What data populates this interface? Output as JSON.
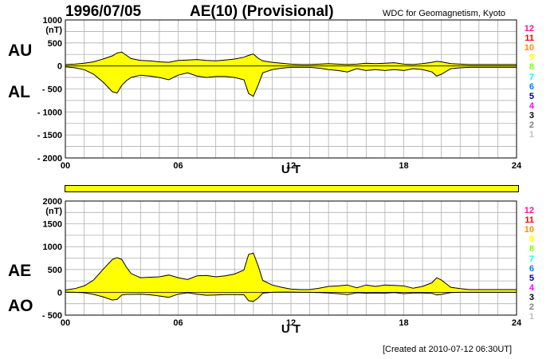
{
  "header": {
    "date": "1996/07/05",
    "title": "AE(10) (Provisional)",
    "source": "WDC for Geomagnetism, Kyoto",
    "created": "[Created at 2010-07-12 06:30UT]"
  },
  "panel_labels": {
    "au": "AU",
    "al": "AL",
    "ae": "AE",
    "ao": "AO"
  },
  "levels": [
    {
      "label": "12",
      "color": "#ff1493"
    },
    {
      "label": "11",
      "color": "#ff0000"
    },
    {
      "label": "10",
      "color": "#ff8c00"
    },
    {
      "label": "9",
      "color": "#ffff00"
    },
    {
      "label": "8",
      "color": "#80ff00"
    },
    {
      "label": "7",
      "color": "#00ffff"
    },
    {
      "label": "6",
      "color": "#0080ff"
    },
    {
      "label": "5",
      "color": "#000080"
    },
    {
      "label": "4",
      "color": "#ff00ff"
    },
    {
      "label": "3",
      "color": "#000000"
    },
    {
      "label": "2",
      "color": "#808080"
    },
    {
      "label": "1",
      "color": "#c0c0c0"
    }
  ],
  "quality_bar_color": "#ffff00",
  "chart_data": [
    {
      "type": "area",
      "panel": "AU/AL",
      "xlabel": "U T",
      "ylabel_unit": "(nT)",
      "xlim": [
        0,
        24
      ],
      "ylim": [
        -2000,
        1000
      ],
      "xticks": [
        "00",
        "06",
        "12",
        "18",
        "24"
      ],
      "yticks": [
        "1000",
        "500",
        "0",
        "- 500",
        "- 1000",
        "- 1500",
        "- 2000"
      ],
      "ytick_values": [
        1000,
        500,
        0,
        -500,
        -1000,
        -1500,
        -2000
      ],
      "grid": true,
      "fill_color": "#ffff00",
      "x": [
        0,
        0.5,
        1,
        1.5,
        2,
        2.5,
        2.75,
        3,
        3.25,
        3.5,
        4,
        4.5,
        5,
        5.5,
        6,
        6.5,
        7,
        7.5,
        8,
        8.5,
        9,
        9.5,
        9.75,
        10,
        10.25,
        10.5,
        11,
        11.5,
        12,
        12.5,
        13,
        13.5,
        14,
        14.5,
        15,
        15.5,
        16,
        16.5,
        17,
        17.5,
        18,
        18.5,
        19,
        19.5,
        19.75,
        20,
        20.5,
        21,
        21.5,
        22,
        22.5,
        23,
        23.5,
        24
      ],
      "series": [
        {
          "name": "AU",
          "values": [
            30,
            40,
            60,
            90,
            150,
            220,
            280,
            300,
            230,
            160,
            120,
            110,
            90,
            80,
            120,
            130,
            140,
            120,
            110,
            130,
            150,
            190,
            230,
            260,
            170,
            110,
            80,
            60,
            40,
            30,
            30,
            40,
            50,
            40,
            30,
            40,
            60,
            50,
            60,
            70,
            40,
            30,
            50,
            80,
            100,
            90,
            50,
            40,
            30,
            30,
            30,
            30,
            30,
            30
          ]
        },
        {
          "name": "AL",
          "values": [
            -20,
            -40,
            -80,
            -180,
            -350,
            -560,
            -590,
            -420,
            -320,
            -250,
            -200,
            -220,
            -250,
            -300,
            -200,
            -150,
            -220,
            -250,
            -230,
            -230,
            -250,
            -300,
            -600,
            -660,
            -420,
            -150,
            -80,
            -50,
            -30,
            -30,
            -30,
            -50,
            -80,
            -100,
            -130,
            -60,
            -100,
            -80,
            -100,
            -80,
            -100,
            -60,
            -80,
            -130,
            -220,
            -180,
            -60,
            -40,
            -30,
            -30,
            -30,
            -30,
            -30,
            -30
          ]
        }
      ]
    },
    {
      "type": "area",
      "panel": "AE/AO",
      "xlabel": "U T",
      "ylabel_unit": "(nT)",
      "xlim": [
        0,
        24
      ],
      "ylim": [
        -500,
        2000
      ],
      "xticks": [
        "00",
        "06",
        "12",
        "18",
        "24"
      ],
      "yticks": [
        "2000",
        "1500",
        "1000",
        "500",
        "0",
        "- 500"
      ],
      "ytick_values": [
        2000,
        1500,
        1000,
        500,
        0,
        -500
      ],
      "grid": true,
      "fill_color": "#ffff00",
      "x": [
        0,
        0.5,
        1,
        1.5,
        2,
        2.5,
        2.75,
        3,
        3.25,
        3.5,
        4,
        4.5,
        5,
        5.5,
        6,
        6.5,
        7,
        7.5,
        8,
        8.5,
        9,
        9.5,
        9.75,
        10,
        10.25,
        10.5,
        11,
        11.5,
        12,
        12.5,
        13,
        13.5,
        14,
        14.5,
        15,
        15.5,
        16,
        16.5,
        17,
        17.5,
        18,
        18.5,
        19,
        19.5,
        19.75,
        20,
        20.5,
        21,
        21.5,
        22,
        22.5,
        23,
        23.5,
        24
      ],
      "series": [
        {
          "name": "AE",
          "values": [
            50,
            80,
            140,
            270,
            500,
            720,
            760,
            720,
            550,
            410,
            320,
            330,
            340,
            380,
            320,
            280,
            360,
            370,
            340,
            360,
            400,
            490,
            830,
            860,
            590,
            260,
            160,
            110,
            70,
            60,
            60,
            90,
            130,
            140,
            160,
            100,
            160,
            130,
            160,
            150,
            140,
            90,
            130,
            210,
            320,
            270,
            110,
            80,
            60,
            60,
            60,
            60,
            60,
            60
          ]
        },
        {
          "name": "AO",
          "values": [
            5,
            0,
            -10,
            -45,
            -100,
            -170,
            -155,
            -60,
            -45,
            -45,
            -40,
            -55,
            -80,
            -110,
            -40,
            -10,
            -40,
            -65,
            -60,
            -50,
            -50,
            -55,
            -185,
            -200,
            -125,
            -20,
            0,
            5,
            5,
            0,
            0,
            -5,
            -15,
            -30,
            -50,
            -10,
            -20,
            -15,
            -20,
            -5,
            -30,
            -15,
            -15,
            -25,
            -60,
            -45,
            -5,
            0,
            0,
            0,
            0,
            0,
            0,
            0
          ]
        }
      ]
    }
  ]
}
